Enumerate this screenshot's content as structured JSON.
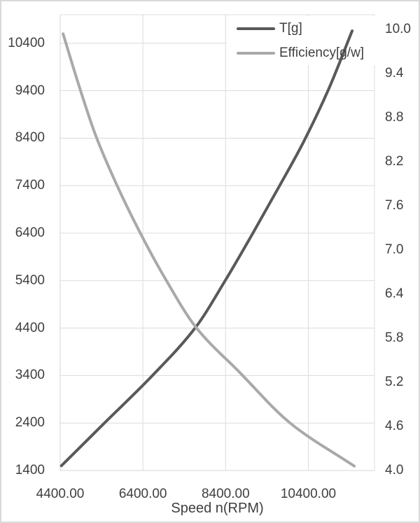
{
  "chart_data": {
    "type": "line",
    "title": "",
    "xlabel": "Speed n(RPM)",
    "grid": true,
    "legend_position": "top-right-inside",
    "x_axis": {
      "tick_labels": [
        "4400.00",
        "6400.00",
        "8400.00",
        "10400.00"
      ],
      "tick_values": [
        4400,
        6400,
        8400,
        10400
      ],
      "range": [
        4400,
        12000
      ]
    },
    "y_left_axis": {
      "tick_labels": [
        "1400",
        "2400",
        "3400",
        "4400",
        "5400",
        "6400",
        "7400",
        "8400",
        "9400",
        "10400"
      ],
      "tick_values": [
        1400,
        2400,
        3400,
        4400,
        5400,
        6400,
        7400,
        8400,
        9400,
        10400
      ],
      "range": [
        1400,
        11000
      ]
    },
    "y_right_axis": {
      "tick_labels": [
        "4.0",
        "4.6",
        "5.2",
        "5.8",
        "6.4",
        "7.0",
        "7.6",
        "8.2",
        "8.8",
        "9.4",
        "10.0"
      ],
      "tick_values": [
        4.0,
        4.6,
        5.2,
        5.8,
        6.4,
        7.0,
        7.6,
        8.2,
        8.8,
        9.4,
        10.0
      ],
      "range": [
        4.0,
        10.2
      ]
    },
    "series": [
      {
        "name": "T[g]",
        "axis": "left",
        "color": "#595959",
        "x": [
          4430,
          5470,
          6630,
          7670,
          8390,
          9050,
          9700,
          10290,
          10900,
          11460
        ],
        "values": [
          1500,
          2400,
          3400,
          4410,
          5400,
          6385,
          7390,
          8330,
          9450,
          10660
        ]
      },
      {
        "name": "Efficiency[g/w]",
        "axis": "right",
        "color": "#a9a9a9",
        "x": [
          4470,
          4840,
          5250,
          5740,
          6300,
          6940,
          7680,
          8730,
          9950,
          11510
        ],
        "values": [
          9.94,
          9.26,
          8.57,
          7.92,
          7.27,
          6.61,
          5.95,
          5.34,
          4.65,
          4.06
        ]
      }
    ]
  },
  "colors": {
    "grid": "#dcdcdc",
    "axis": "#d4d4d4",
    "text": "#3f3f3f",
    "background": "#ffffff",
    "border": "#d9d9d9"
  }
}
